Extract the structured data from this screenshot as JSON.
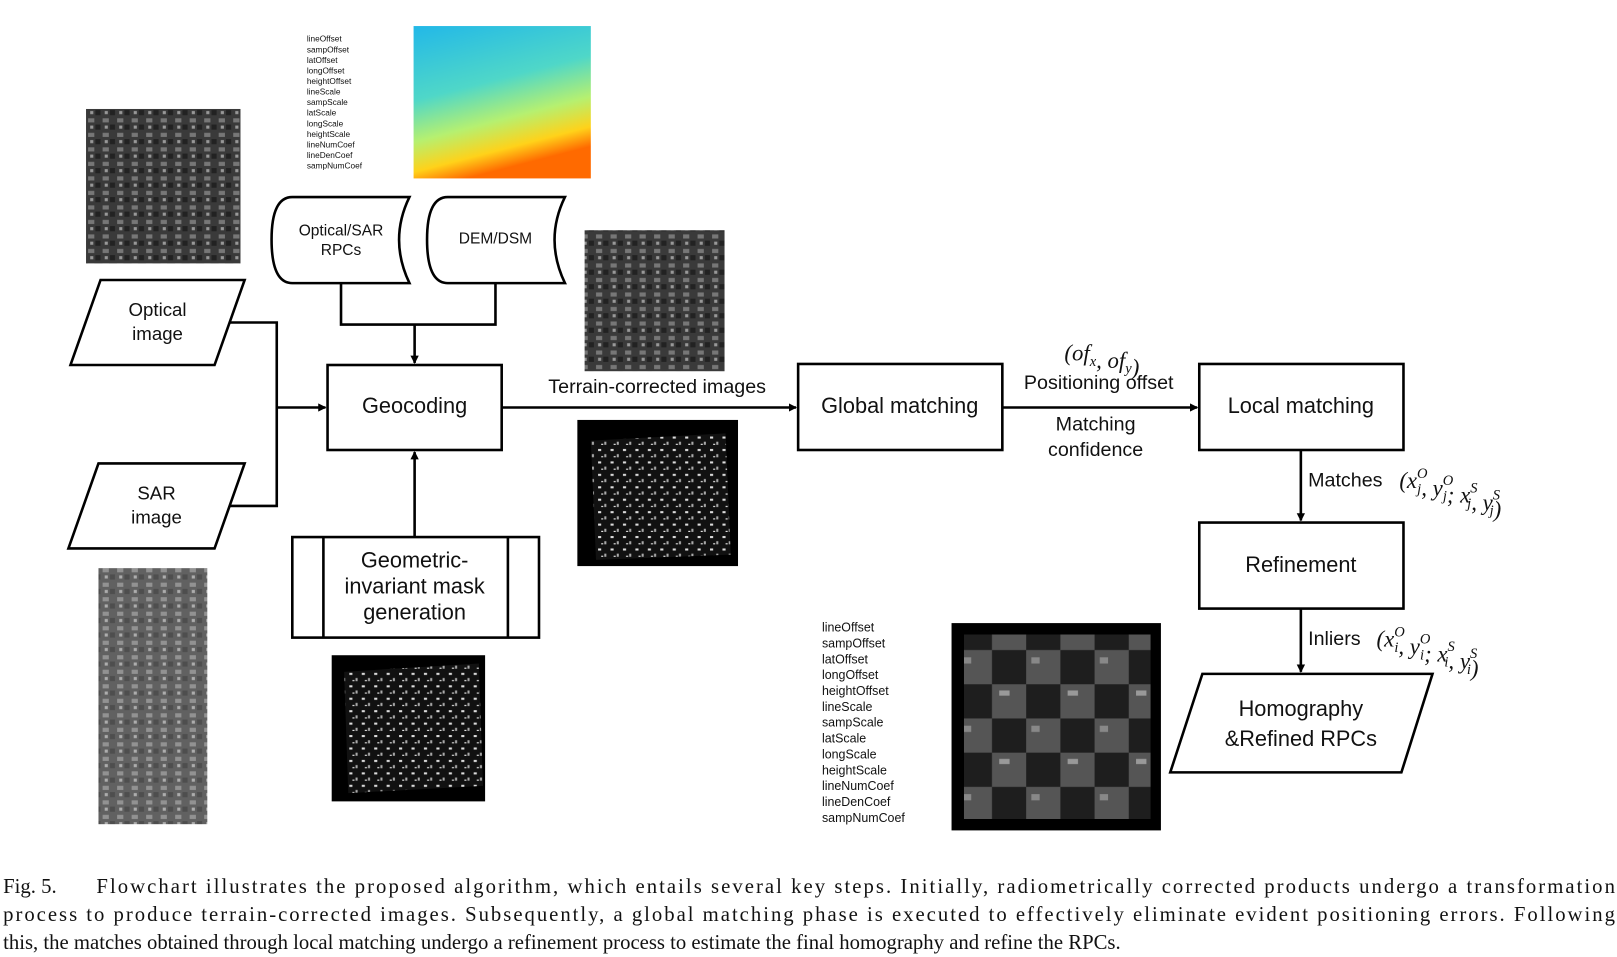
{
  "figure": {
    "rpc_params_top": [
      "lineOffset",
      "sampOffset",
      "latOffset",
      "longOffset",
      "heightOffset",
      "lineScale",
      "sampScale",
      "latScale",
      "longScale",
      "heightScale",
      "lineNumCoef",
      "lineDenCoef",
      "sampNumCoef"
    ],
    "rpc_params_bottom": [
      "lineOffset",
      "sampOffset",
      "latOffset",
      "longOffset",
      "heightOffset",
      "lineScale",
      "sampScale",
      "latScale",
      "longScale",
      "heightScale",
      "lineNumCoef",
      "lineDenCoef",
      "sampNumCoef"
    ],
    "nodes": {
      "optical": [
        "Optical",
        "image"
      ],
      "sar": [
        "SAR",
        "image"
      ],
      "rpcs": [
        "Optical/SAR",
        "RPCs"
      ],
      "dem": [
        "DEM/DSM"
      ],
      "geocoding": [
        "Geocoding"
      ],
      "mask": [
        "Geometric-",
        "invariant mask",
        "generation"
      ],
      "global": [
        "Global matching"
      ],
      "local": [
        "Local matching"
      ],
      "refinement": [
        "Refinement"
      ],
      "homography": [
        "Homography",
        "&Refined RPCs"
      ]
    },
    "edges": {
      "terrain": "Terrain-corrected images",
      "offset_math": [
        "(",
        {
          "t": "of",
          "sub": "x"
        },
        ", ",
        {
          "t": "of",
          "sub": "y"
        },
        ")"
      ],
      "offset": "Positioning offset",
      "confidence": [
        "Matching",
        "confidence"
      ],
      "matches": "Matches",
      "matches_math": [
        "(",
        {
          "t": "x",
          "sup": "O",
          "sub": "j"
        },
        ", ",
        {
          "t": "y",
          "sup": "O",
          "sub": "j"
        },
        "; ",
        {
          "t": "x",
          "sup": "S",
          "sub": "j"
        },
        ", ",
        {
          "t": "y",
          "sup": "S",
          "sub": "j"
        },
        ")"
      ],
      "inliers": "Inliers",
      "inliers_math": [
        "(",
        {
          "t": "x",
          "sup": "O",
          "sub": "i"
        },
        ", ",
        {
          "t": "y",
          "sup": "O",
          "sub": "i"
        },
        "; ",
        {
          "t": "x",
          "sup": "S",
          "sub": "i"
        },
        ", ",
        {
          "t": "y",
          "sup": "S",
          "sub": "i"
        },
        ")"
      ]
    },
    "caption": {
      "label": "Fig. 5.",
      "lines": [
        "Flowchart illustrates the proposed algorithm, which entails several key steps. Initially, radiometrically corrected products undergo a transformation",
        "process to produce terrain-corrected images. Subsequently, a global matching phase is executed to effectively eliminate evident positioning errors. Following",
        "this, the matches obtained through local matching undergo a refinement process to estimate the final homography and refine the RPCs."
      ]
    }
  }
}
